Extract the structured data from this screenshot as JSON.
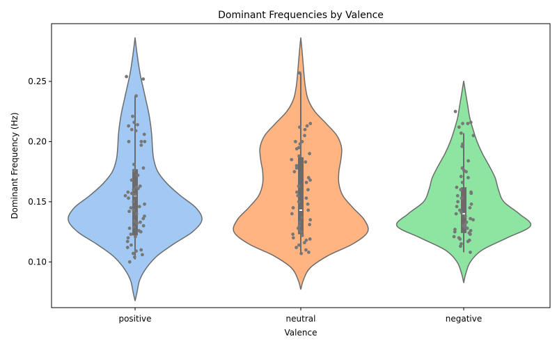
{
  "chart_data": {
    "type": "violin",
    "title": "Dominant Frequencies by Valence",
    "xlabel": "Valence",
    "ylabel": "Dominant Frequency (Hz)",
    "ylim": [
      0.062,
      0.298
    ],
    "yticks": [
      0.1,
      0.15,
      0.2,
      0.25
    ],
    "ytick_labels": [
      "0.10",
      "0.15",
      "0.20",
      "0.25"
    ],
    "categories": [
      "positive",
      "neutral",
      "negative"
    ],
    "colors": [
      "#a1c9f4",
      "#ffb482",
      "#8de5a1"
    ],
    "edge_color": "#6b6b6b",
    "point_color": "#777777",
    "grid": false,
    "series": [
      {
        "category": "positive",
        "density": [
          [
            0.0675,
            0.0
          ],
          [
            0.075,
            0.03
          ],
          [
            0.085,
            0.07
          ],
          [
            0.095,
            0.17
          ],
          [
            0.105,
            0.33
          ],
          [
            0.115,
            0.58
          ],
          [
            0.125,
            0.86
          ],
          [
            0.135,
            1.0
          ],
          [
            0.145,
            0.91
          ],
          [
            0.155,
            0.68
          ],
          [
            0.165,
            0.48
          ],
          [
            0.175,
            0.34
          ],
          [
            0.185,
            0.28
          ],
          [
            0.195,
            0.26
          ],
          [
            0.205,
            0.25
          ],
          [
            0.215,
            0.23
          ],
          [
            0.225,
            0.2
          ],
          [
            0.235,
            0.16
          ],
          [
            0.245,
            0.12
          ],
          [
            0.255,
            0.08
          ],
          [
            0.265,
            0.05
          ],
          [
            0.275,
            0.025
          ],
          [
            0.2865,
            0.0
          ]
        ],
        "box": {
          "q1": 0.122,
          "median": 0.155,
          "q3": 0.177,
          "whisker_low": 0.102,
          "whisker_high": 0.238
        },
        "points": [
          0.252,
          0.254,
          0.238,
          0.221,
          0.216,
          0.214,
          0.213,
          0.21,
          0.209,
          0.206,
          0.2,
          0.2,
          0.2,
          0.197,
          0.181,
          0.178,
          0.176,
          0.172,
          0.168,
          0.163,
          0.162,
          0.161,
          0.16,
          0.158,
          0.157,
          0.156,
          0.155,
          0.153,
          0.15,
          0.148,
          0.146,
          0.145,
          0.143,
          0.142,
          0.14,
          0.138,
          0.136,
          0.134,
          0.133,
          0.132,
          0.13,
          0.129,
          0.128,
          0.126,
          0.125,
          0.123,
          0.121,
          0.12,
          0.117,
          0.114,
          0.112,
          0.11,
          0.109,
          0.107,
          0.106,
          0.104,
          0.1
        ]
      },
      {
        "category": "neutral",
        "density": [
          [
            0.077,
            0.0
          ],
          [
            0.085,
            0.04
          ],
          [
            0.095,
            0.14
          ],
          [
            0.105,
            0.4
          ],
          [
            0.115,
            0.78
          ],
          [
            0.125,
            1.0
          ],
          [
            0.135,
            0.95
          ],
          [
            0.145,
            0.78
          ],
          [
            0.155,
            0.63
          ],
          [
            0.165,
            0.57
          ],
          [
            0.175,
            0.57
          ],
          [
            0.185,
            0.6
          ],
          [
            0.195,
            0.61
          ],
          [
            0.205,
            0.54
          ],
          [
            0.215,
            0.38
          ],
          [
            0.225,
            0.21
          ],
          [
            0.235,
            0.11
          ],
          [
            0.245,
            0.07
          ],
          [
            0.255,
            0.05
          ],
          [
            0.265,
            0.035
          ],
          [
            0.275,
            0.02
          ],
          [
            0.2865,
            0.0
          ]
        ],
        "box": {
          "q1": 0.123,
          "median": 0.143,
          "q3": 0.187,
          "whisker_low": 0.108,
          "whisker_high": 0.257
        },
        "points": [
          0.257,
          0.215,
          0.213,
          0.212,
          0.21,
          0.205,
          0.2,
          0.2,
          0.198,
          0.195,
          0.194,
          0.19,
          0.188,
          0.185,
          0.183,
          0.18,
          0.178,
          0.175,
          0.17,
          0.168,
          0.166,
          0.163,
          0.16,
          0.158,
          0.155,
          0.153,
          0.15,
          0.148,
          0.145,
          0.143,
          0.14,
          0.137,
          0.135,
          0.133,
          0.131,
          0.13,
          0.128,
          0.126,
          0.125,
          0.123,
          0.122,
          0.12,
          0.119,
          0.118,
          0.116,
          0.114,
          0.112,
          0.11,
          0.108,
          0.107
        ]
      },
      {
        "category": "negative",
        "density": [
          [
            0.0825,
            0.0
          ],
          [
            0.09,
            0.03
          ],
          [
            0.1,
            0.1
          ],
          [
            0.11,
            0.28
          ],
          [
            0.12,
            0.65
          ],
          [
            0.13,
            1.0
          ],
          [
            0.14,
            0.83
          ],
          [
            0.15,
            0.6
          ],
          [
            0.16,
            0.52
          ],
          [
            0.17,
            0.47
          ],
          [
            0.18,
            0.38
          ],
          [
            0.19,
            0.28
          ],
          [
            0.2,
            0.2
          ],
          [
            0.21,
            0.14
          ],
          [
            0.22,
            0.09
          ],
          [
            0.23,
            0.06
          ],
          [
            0.24,
            0.03
          ],
          [
            0.2505,
            0.0
          ]
        ],
        "box": {
          "q1": 0.124,
          "median": 0.14,
          "q3": 0.162,
          "whisker_low": 0.108,
          "whisker_high": 0.207
        },
        "points": [
          0.225,
          0.216,
          0.215,
          0.215,
          0.212,
          0.207,
          0.205,
          0.198,
          0.196,
          0.184,
          0.178,
          0.176,
          0.175,
          0.171,
          0.17,
          0.166,
          0.162,
          0.16,
          0.158,
          0.157,
          0.155,
          0.153,
          0.15,
          0.148,
          0.146,
          0.145,
          0.143,
          0.141,
          0.14,
          0.138,
          0.136,
          0.135,
          0.133,
          0.131,
          0.13,
          0.129,
          0.128,
          0.127,
          0.126,
          0.125,
          0.124,
          0.123,
          0.121,
          0.12,
          0.119,
          0.118,
          0.117,
          0.115,
          0.113,
          0.108
        ]
      }
    ]
  }
}
